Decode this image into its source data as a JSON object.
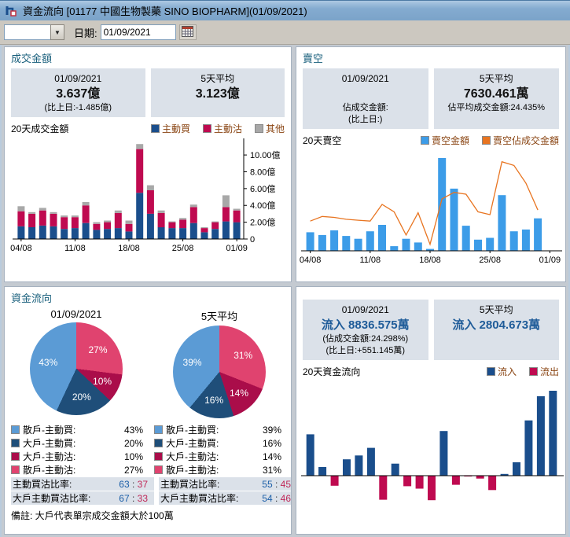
{
  "window": {
    "title": "資金流向 [01177  中國生物製藥  SINO BIOPHARM](01/09/2021)"
  },
  "toolbar": {
    "combo_value": "",
    "date_label": "日期:",
    "date_value": "01/09/2021"
  },
  "panels": {
    "turnover": {
      "title": "成交金額",
      "today": {
        "date": "01/09/2021",
        "value": "3.637億",
        "delta": "(比上日:-1.485億)"
      },
      "avg5": {
        "label": "5天平均",
        "value": "3.123億"
      },
      "chart_label": "20天成交金額",
      "legend": [
        {
          "label": "主動買",
          "color": "#1a4e8c"
        },
        {
          "label": "主動沽",
          "color": "#bf0a50"
        },
        {
          "label": "其他",
          "color": "#a8a8a8"
        }
      ]
    },
    "short": {
      "title": "賣空",
      "today": {
        "date": "01/09/2021",
        "value": "",
        "pct": "佔成交金額:",
        "delta": "(比上日:)"
      },
      "avg5": {
        "label": "5天平均",
        "value": "7630.461萬",
        "pct": "佔平均成交金額:24.435%"
      },
      "chart_label": "20天賣空",
      "legend": [
        {
          "label": "賣空金額",
          "color": "#3c9ce8"
        },
        {
          "label": "賣空佔成交金額",
          "color": "#e87420"
        }
      ]
    },
    "flow": {
      "title": "資金流向",
      "pie1_title": "01/09/2021",
      "pie2_title": "5天平均",
      "legend_rows": [
        {
          "label": "散戶-主動買:",
          "color": "#5b9bd5",
          "v1": "43%",
          "v2": "39%"
        },
        {
          "label": "大戶-主動買:",
          "color": "#1f4e79",
          "v1": "20%",
          "v2": "16%"
        },
        {
          "label": "大戶-主動沽:",
          "color": "#aa0d4a",
          "v1": "10%",
          "v2": "14%"
        },
        {
          "label": "散戶-主動沽:",
          "color": "#e0436f",
          "v1": "27%",
          "v2": "31%"
        }
      ],
      "ratio_rows": [
        {
          "label": "主動買沽比率:",
          "buy1": "63",
          "sell1": "37",
          "buy2": "55",
          "sell2": "45"
        },
        {
          "label": "大戶主動買沽比率:",
          "buy1": "67",
          "sell1": "33",
          "buy2": "54",
          "sell2": "46"
        }
      ],
      "note": "備註: 大戶代表單宗成交金額大於100萬"
    },
    "netflow": {
      "today": {
        "date": "01/09/2021",
        "value": "流入 8836.575萬",
        "pct": "(佔成交金額:24.298%)",
        "delta": "(比上日:+551.145萬)"
      },
      "avg5": {
        "label": "5天平均",
        "value": "流入 2804.673萬"
      },
      "chart_label": "20天資金流向",
      "legend": [
        {
          "label": "流入",
          "color": "#1a4e8c"
        },
        {
          "label": "流出",
          "color": "#bf0a50"
        }
      ]
    }
  },
  "chart_data": [
    {
      "id": "turnover",
      "type": "bar",
      "stacked": true,
      "title": "20天成交金額",
      "unit": "億",
      "ylim": [
        0,
        11.6
      ],
      "y_ticks": [
        {
          "v": 0,
          "label": "0"
        },
        {
          "v": 2,
          "label": "2.00億"
        },
        {
          "v": 4,
          "label": "4.00億"
        },
        {
          "v": 6,
          "label": "6.00億"
        },
        {
          "v": 8,
          "label": "8.00億"
        },
        {
          "v": 10,
          "label": "10.00億"
        }
      ],
      "y_axis_side": "right",
      "x_tick_labels": [
        "04/08",
        "11/08",
        "18/08",
        "25/08",
        "01/09"
      ],
      "x_tick_indices": [
        0,
        5,
        10,
        15,
        20
      ],
      "n_slots": 21,
      "series": [
        {
          "name": "主動買",
          "color": "#1a4e8c",
          "values": [
            1.5,
            1.4,
            1.6,
            1.5,
            1.2,
            1.3,
            1.9,
            1.1,
            1.2,
            1.3,
            0.9,
            5.5,
            3.0,
            1.4,
            1.3,
            1.3,
            1.9,
            0.8,
            1.2,
            2.1,
            2.0
          ]
        },
        {
          "name": "主動沽",
          "color": "#bf0a50",
          "values": [
            1.8,
            1.6,
            1.8,
            1.5,
            1.4,
            1.3,
            2.1,
            0.7,
            0.8,
            1.8,
            0.9,
            5.2,
            2.8,
            1.7,
            0.7,
            1.0,
            1.9,
            0.5,
            0.8,
            1.7,
            1.4
          ]
        },
        {
          "name": "其他",
          "color": "#a8a8a8",
          "values": [
            0.6,
            0.2,
            0.3,
            0.2,
            0.2,
            0.2,
            0.4,
            0.2,
            0.2,
            0.3,
            0.4,
            0.6,
            0.6,
            0.3,
            0.1,
            0.2,
            0.3,
            0.1,
            0.1,
            1.4,
            0.2
          ]
        }
      ]
    },
    {
      "id": "short_selling",
      "type": "bar+line",
      "title": "20天賣空",
      "x_tick_labels": [
        "04/08",
        "11/08",
        "18/08",
        "25/08",
        "01/09"
      ],
      "x_tick_indices": [
        0,
        5,
        10,
        15,
        20
      ],
      "n_slots": 21,
      "bars": {
        "name": "賣空金額",
        "color": "#3c9ce8",
        "values_pct_of_max": [
          20,
          17,
          22,
          16,
          13,
          21,
          28,
          5,
          13,
          9,
          2,
          100,
          67,
          27,
          12,
          14,
          60,
          21,
          23,
          35
        ]
      },
      "line": {
        "name": "賣空佔成交金額",
        "color": "#e87420",
        "values_pct_of_chart_height": [
          32,
          37,
          36,
          34,
          33,
          32,
          50,
          42,
          17,
          41,
          7,
          56,
          63,
          61,
          42,
          39,
          96,
          92,
          73,
          44
        ]
      }
    },
    {
      "id": "flow_pie_today",
      "type": "pie",
      "title": "01/09/2021",
      "slices": [
        {
          "label": "散戶-主動沽",
          "value": 27,
          "color": "#e0436f"
        },
        {
          "label": "大戶-主動沽",
          "value": 10,
          "color": "#aa0d4a"
        },
        {
          "label": "大戶-主動買",
          "value": 20,
          "color": "#1f4e79"
        },
        {
          "label": "散戶-主動買",
          "value": 43,
          "color": "#5b9bd5"
        }
      ]
    },
    {
      "id": "flow_pie_avg5",
      "type": "pie",
      "title": "5天平均",
      "slices": [
        {
          "label": "散戶-主動沽",
          "value": 31,
          "color": "#e0436f"
        },
        {
          "label": "大戶-主動沽",
          "value": 14,
          "color": "#aa0d4a"
        },
        {
          "label": "大戶-主動買",
          "value": 16,
          "color": "#1f4e79"
        },
        {
          "label": "散戶-主動買",
          "value": 39,
          "color": "#5b9bd5"
        }
      ]
    },
    {
      "id": "net_flow",
      "type": "bar",
      "title": "20天資金流向",
      "unit": "萬",
      "ylim": [
        -3000,
        9200
      ],
      "positive_color": "#1a4e8c",
      "negative_color": "#bf0a50",
      "n_slots": 21,
      "values_wan": [
        4300,
        900,
        -1050,
        1700,
        2100,
        2900,
        -2500,
        1250,
        -1100,
        -1350,
        -2550,
        4650,
        -950,
        -80,
        -300,
        -1500,
        180,
        1400,
        5750,
        8270,
        8837
      ]
    }
  ]
}
